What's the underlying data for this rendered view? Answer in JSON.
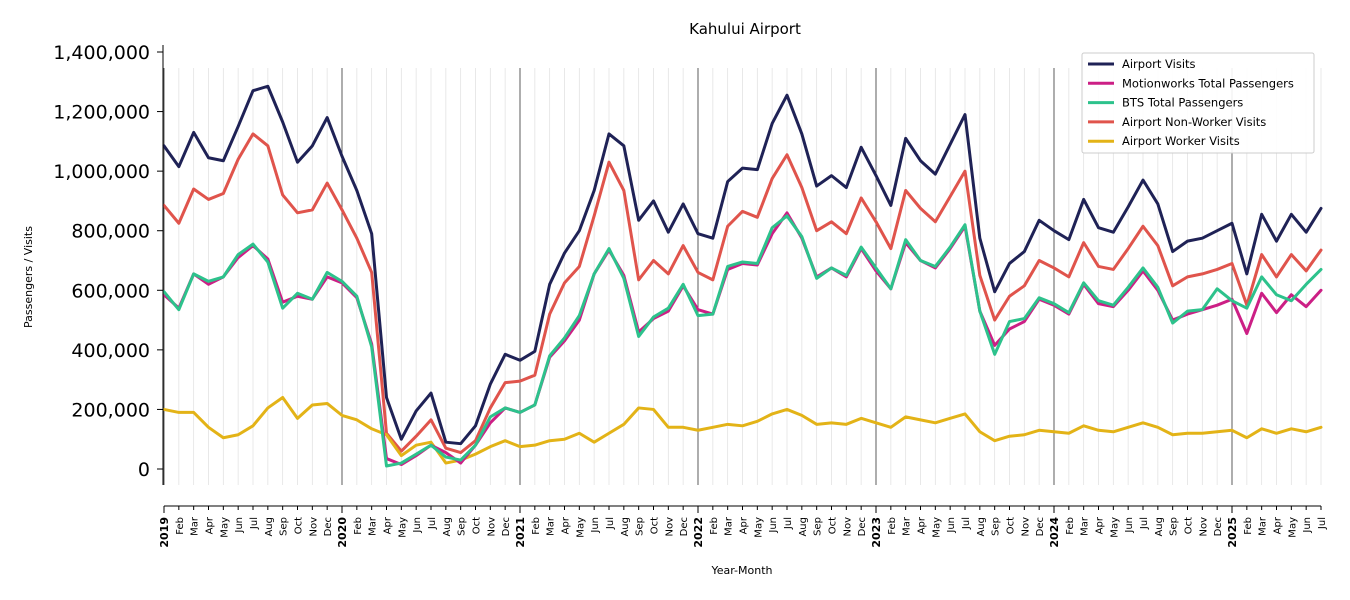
{
  "chart_data": {
    "type": "line",
    "title": "Kahului Airport",
    "xlabel": "Year-Month",
    "ylabel": "Passengers / Visits",
    "ylim": [
      -55000,
      1420000
    ],
    "yticks": [
      0,
      200000,
      400000,
      600000,
      800000,
      1000000,
      1200000,
      1400000
    ],
    "ytick_labels": [
      "0",
      "200,000",
      "400,000",
      "600,000",
      "800,000",
      "1,000,000",
      "1,200,000",
      "1,400,000"
    ],
    "legend_placement": "top-right",
    "grid": "vertical lines per month; darker lines at each January",
    "x": [
      "2019-01",
      "2019-02",
      "2019-03",
      "2019-04",
      "2019-05",
      "2019-06",
      "2019-07",
      "2019-08",
      "2019-09",
      "2019-10",
      "2019-11",
      "2019-12",
      "2020-01",
      "2020-02",
      "2020-03",
      "2020-04",
      "2020-05",
      "2020-06",
      "2020-07",
      "2020-08",
      "2020-09",
      "2020-10",
      "2020-11",
      "2020-12",
      "2021-01",
      "2021-02",
      "2021-03",
      "2021-04",
      "2021-05",
      "2021-06",
      "2021-07",
      "2021-08",
      "2021-09",
      "2021-10",
      "2021-11",
      "2021-12",
      "2022-01",
      "2022-02",
      "2022-03",
      "2022-04",
      "2022-05",
      "2022-06",
      "2022-07",
      "2022-08",
      "2022-09",
      "2022-10",
      "2022-11",
      "2022-12",
      "2023-01",
      "2023-02",
      "2023-03",
      "2023-04",
      "2023-05",
      "2023-06",
      "2023-07",
      "2023-08",
      "2023-09",
      "2023-10",
      "2023-11",
      "2023-12",
      "2024-01",
      "2024-02",
      "2024-03",
      "2024-04",
      "2024-05",
      "2024-06",
      "2024-07",
      "2024-08",
      "2024-09",
      "2024-10",
      "2024-11",
      "2024-12",
      "2025-01",
      "2025-02",
      "2025-03",
      "2025-04",
      "2025-05",
      "2025-06",
      "2025-07"
    ],
    "x_tick_labels": [
      "2019",
      "Feb",
      "Mar",
      "Apr",
      "May",
      "Jun",
      "Jul",
      "Aug",
      "Sep",
      "Oct",
      "Nov",
      "Dec",
      "2020",
      "Feb",
      "Mar",
      "Apr",
      "May",
      "Jun",
      "Jul",
      "Aug",
      "Sep",
      "Oct",
      "Nov",
      "Dec",
      "2021",
      "Feb",
      "Mar",
      "Apr",
      "May",
      "Jun",
      "Jul",
      "Aug",
      "Sep",
      "Oct",
      "Nov",
      "Dec",
      "2022",
      "Feb",
      "Mar",
      "Apr",
      "May",
      "Jun",
      "Jul",
      "Aug",
      "Sep",
      "Oct",
      "Nov",
      "Dec",
      "2023",
      "Feb",
      "Mar",
      "Apr",
      "May",
      "Jun",
      "Jul",
      "Aug",
      "Sep",
      "Oct",
      "Nov",
      "Dec",
      "2024",
      "Feb",
      "Mar",
      "Apr",
      "May",
      "Jun",
      "Jul",
      "Aug",
      "Sep",
      "Oct",
      "Nov",
      "Dec",
      "2025",
      "Feb",
      "Mar",
      "Apr",
      "May",
      "Jun",
      "Jul"
    ],
    "series": [
      {
        "name": "Airport Visits",
        "color": "#1f2256",
        "values": [
          1085000,
          1015000,
          1130000,
          1045000,
          1035000,
          1150000,
          1270000,
          1285000,
          1165000,
          1030000,
          1085000,
          1180000,
          1050000,
          935000,
          790000,
          240000,
          100000,
          195000,
          255000,
          90000,
          85000,
          145000,
          285000,
          385000,
          365000,
          395000,
          620000,
          725000,
          800000,
          935000,
          1125000,
          1085000,
          835000,
          900000,
          795000,
          890000,
          790000,
          775000,
          965000,
          1010000,
          1005000,
          1160000,
          1255000,
          1125000,
          950000,
          985000,
          945000,
          1080000,
          985000,
          885000,
          1110000,
          1035000,
          990000,
          1090000,
          1190000,
          775000,
          595000,
          690000,
          730000,
          835000,
          800000,
          770000,
          905000,
          810000,
          795000,
          880000,
          970000,
          890000,
          730000,
          765000,
          775000,
          800000,
          825000,
          655000,
          855000,
          765000,
          855000,
          795000,
          875000
        ]
      },
      {
        "name": "Motionworks Total Passengers",
        "color": "#cc1f85",
        "values": [
          585000,
          540000,
          655000,
          620000,
          645000,
          710000,
          750000,
          705000,
          560000,
          580000,
          570000,
          645000,
          625000,
          575000,
          420000,
          35000,
          15000,
          45000,
          80000,
          55000,
          20000,
          80000,
          155000,
          205000,
          190000,
          215000,
          375000,
          430000,
          500000,
          655000,
          735000,
          650000,
          460000,
          505000,
          530000,
          615000,
          535000,
          520000,
          670000,
          690000,
          685000,
          790000,
          860000,
          775000,
          645000,
          675000,
          645000,
          740000,
          665000,
          605000,
          760000,
          700000,
          675000,
          740000,
          815000,
          530000,
          415000,
          470000,
          495000,
          570000,
          550000,
          520000,
          620000,
          555000,
          545000,
          600000,
          665000,
          600000,
          500000,
          520000,
          535000,
          550000,
          570000,
          455000,
          590000,
          525000,
          585000,
          545000,
          600000
        ]
      },
      {
        "name": "BTS Total Passengers",
        "color": "#2dc28c",
        "values": [
          595000,
          535000,
          655000,
          630000,
          645000,
          720000,
          755000,
          695000,
          540000,
          590000,
          570000,
          660000,
          630000,
          580000,
          410000,
          10000,
          20000,
          50000,
          80000,
          40000,
          30000,
          80000,
          175000,
          205000,
          190000,
          215000,
          380000,
          440000,
          515000,
          655000,
          740000,
          640000,
          445000,
          510000,
          540000,
          620000,
          515000,
          520000,
          680000,
          695000,
          690000,
          810000,
          850000,
          780000,
          640000,
          675000,
          650000,
          745000,
          675000,
          605000,
          770000,
          700000,
          680000,
          745000,
          820000,
          530000,
          385000,
          495000,
          505000,
          575000,
          555000,
          525000,
          625000,
          565000,
          550000,
          610000,
          675000,
          610000,
          490000,
          530000,
          535000,
          605000,
          565000,
          540000,
          645000,
          585000,
          565000,
          620000,
          670000
        ]
      },
      {
        "name": "Airport Non-Worker Visits",
        "color": "#e0544c",
        "values": [
          885000,
          825000,
          940000,
          905000,
          925000,
          1040000,
          1125000,
          1085000,
          920000,
          860000,
          870000,
          960000,
          870000,
          775000,
          660000,
          120000,
          60000,
          110000,
          165000,
          70000,
          55000,
          95000,
          205000,
          290000,
          295000,
          315000,
          520000,
          625000,
          680000,
          850000,
          1030000,
          935000,
          635000,
          700000,
          655000,
          750000,
          660000,
          635000,
          815000,
          865000,
          845000,
          975000,
          1055000,
          945000,
          800000,
          830000,
          790000,
          910000,
          830000,
          740000,
          935000,
          875000,
          830000,
          915000,
          1000000,
          650000,
          500000,
          580000,
          615000,
          700000,
          675000,
          645000,
          760000,
          680000,
          670000,
          740000,
          815000,
          750000,
          615000,
          645000,
          655000,
          670000,
          690000,
          550000,
          720000,
          645000,
          720000,
          665000,
          735000
        ]
      },
      {
        "name": "Airport Worker Visits",
        "color": "#e3b317",
        "values": [
          200000,
          190000,
          190000,
          140000,
          105000,
          115000,
          145000,
          205000,
          240000,
          170000,
          215000,
          220000,
          180000,
          165000,
          135000,
          115000,
          45000,
          80000,
          90000,
          20000,
          30000,
          50000,
          75000,
          95000,
          75000,
          80000,
          95000,
          100000,
          120000,
          90000,
          120000,
          150000,
          205000,
          200000,
          140000,
          140000,
          130000,
          140000,
          150000,
          145000,
          160000,
          185000,
          200000,
          180000,
          150000,
          155000,
          150000,
          170000,
          155000,
          140000,
          175000,
          165000,
          155000,
          170000,
          185000,
          125000,
          95000,
          110000,
          115000,
          130000,
          125000,
          120000,
          145000,
          130000,
          125000,
          140000,
          155000,
          140000,
          115000,
          120000,
          120000,
          125000,
          130000,
          105000,
          135000,
          120000,
          135000,
          125000,
          140000
        ]
      }
    ]
  }
}
